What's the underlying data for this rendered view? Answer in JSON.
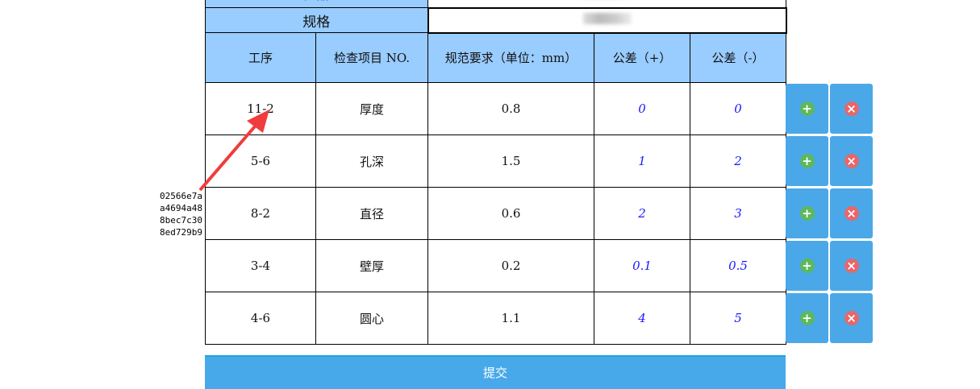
{
  "product_label": "产品",
  "spec_label": "规格",
  "headers": [
    "工序",
    "检查项目 NO.",
    "规范要求（单位：mm）",
    "公差（+）",
    "公差（-）"
  ],
  "rows": [
    {
      "process": "11-2",
      "item": "厚度",
      "spec": "0.8",
      "tol_plus": "0",
      "tol_minus": "0"
    },
    {
      "process": "5-6",
      "item": "孔深",
      "spec": "1.5",
      "tol_plus": "1",
      "tol_minus": "2"
    },
    {
      "process": "8-2",
      "item": "直径",
      "spec": "0.6",
      "tol_plus": "2",
      "tol_minus": "3"
    },
    {
      "process": "3-4",
      "item": "壁厚",
      "spec": "0.2",
      "tol_plus": "0.1",
      "tol_minus": "0.5"
    },
    {
      "process": "4-6",
      "item": "圆心",
      "spec": "1.1",
      "tol_plus": "4",
      "tol_minus": "5"
    }
  ],
  "annotation": [
    "02566e7a",
    "a4694a48",
    "8bec7c30",
    "8ed729b9"
  ],
  "submit_label": "提交",
  "colors": {
    "header": "#99ccff",
    "button": "#4aa8e8",
    "add": "#5cb85c",
    "delete": "#e8666a",
    "tolerance_text": "#1a1aff"
  }
}
